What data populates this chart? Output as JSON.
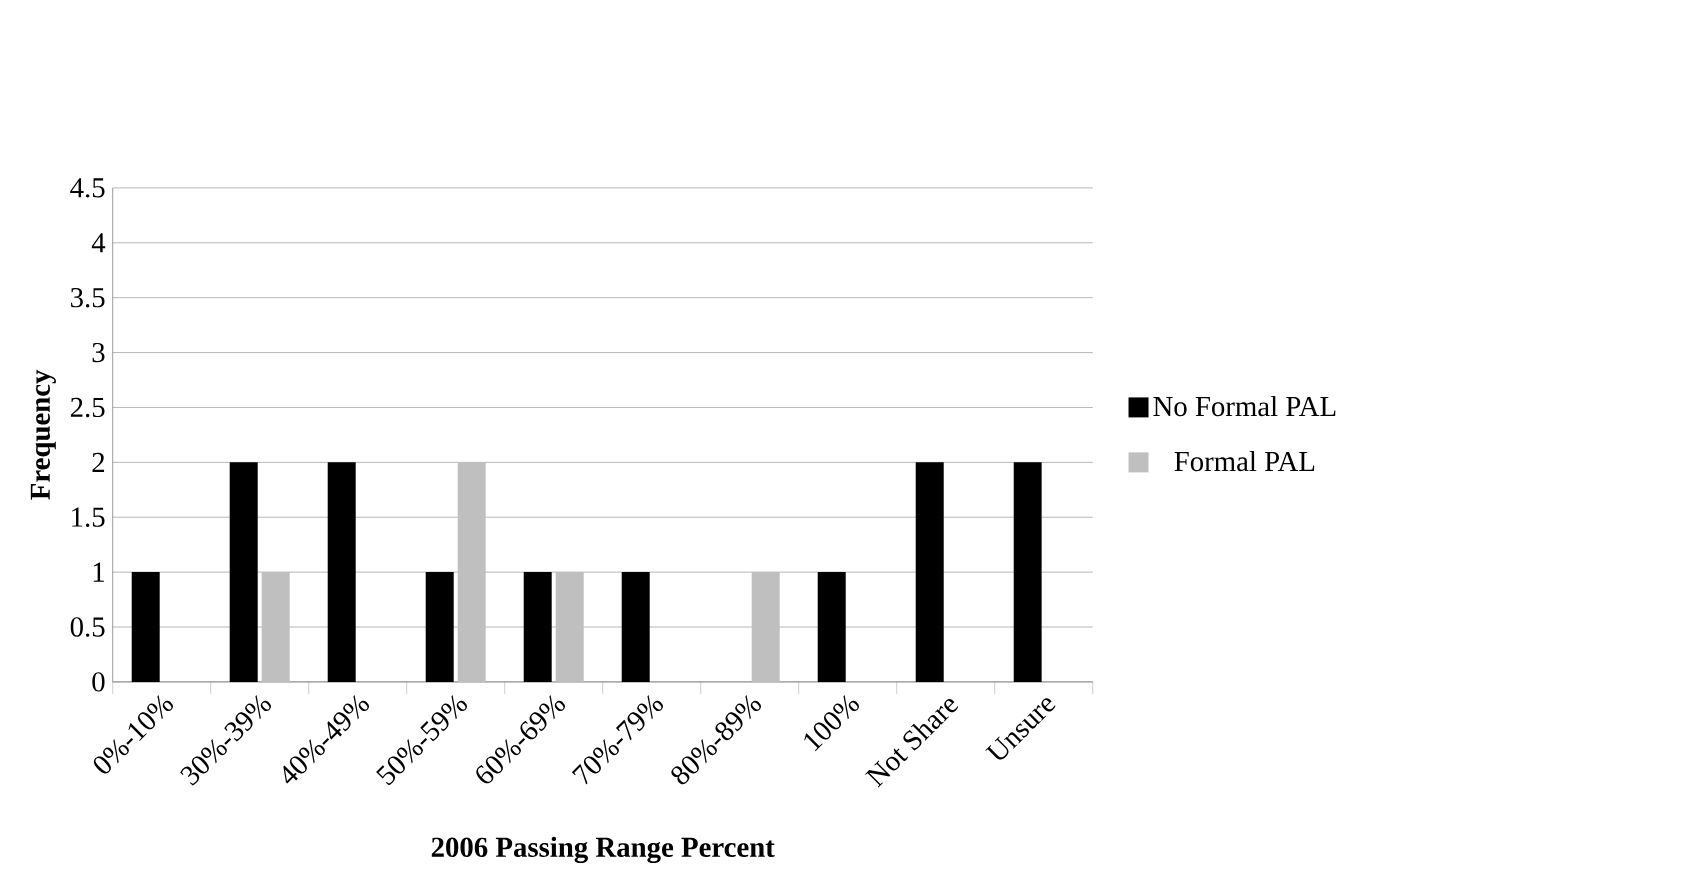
{
  "chart_data": {
    "type": "bar",
    "xlabel": "2006 Passing Range Percent",
    "ylabel": "Frequency",
    "categories": [
      "0%-10%",
      "30%-39%",
      "40%-49%",
      "50%-59%",
      "60%-69%",
      "70%-79%",
      "80%-89%",
      "100%",
      "Not Share",
      "Unsure"
    ],
    "series": [
      {
        "name": "No Formal PAL",
        "color": "#000000",
        "values": [
          1,
          2,
          2,
          1,
          1,
          1,
          0,
          1,
          2,
          2
        ]
      },
      {
        "name": "Formal PAL",
        "color": "#bfbfbf",
        "values": [
          0,
          1,
          0,
          2,
          1,
          0,
          1,
          0,
          0,
          0
        ]
      }
    ],
    "ylim": [
      0,
      4.5
    ],
    "yticks": [
      0,
      0.5,
      1,
      1.5,
      2,
      2.5,
      3,
      3.5,
      4,
      4.5
    ],
    "grid": "y",
    "legend": "right"
  }
}
